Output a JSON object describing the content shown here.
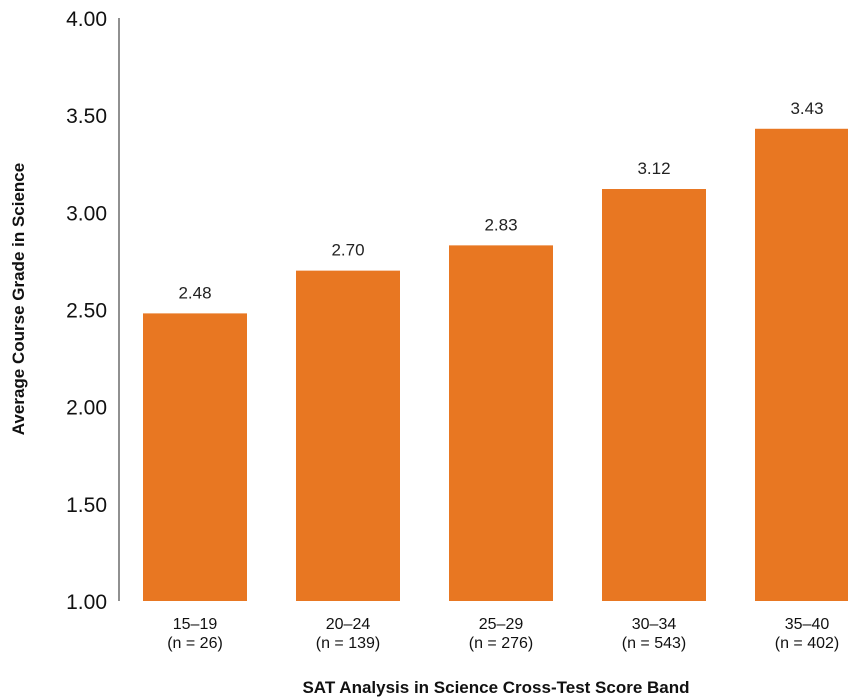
{
  "chart_data": {
    "type": "bar",
    "categories": [
      "15–19",
      "20–24",
      "25–29",
      "30–34",
      "35–40"
    ],
    "sample_sizes": [
      "(n = 26)",
      "(n = 139)",
      "(n = 276)",
      "(n = 543)",
      "(n = 402)"
    ],
    "values": [
      2.48,
      2.7,
      2.83,
      3.12,
      3.43
    ],
    "value_labels": [
      "2.48",
      "2.70",
      "2.83",
      "3.12",
      "3.43"
    ],
    "xlabel": "SAT Analysis in Science Cross-Test Score Band",
    "ylabel": "Average Course Grade in Science",
    "ylim": [
      1.0,
      4.0
    ],
    "yticks": [
      1.0,
      1.5,
      2.0,
      2.5,
      3.0,
      3.5,
      4.0
    ],
    "ytick_labels": [
      "1.00",
      "1.50",
      "2.00",
      "2.50",
      "3.00",
      "3.50",
      "4.00"
    ],
    "grid": false,
    "legend": "none",
    "bar_color": "#E87722"
  }
}
